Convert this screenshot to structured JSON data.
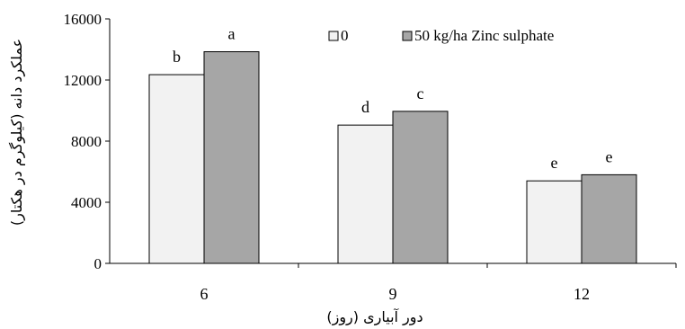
{
  "chart_data": {
    "type": "bar",
    "categories": [
      "6",
      "9",
      "12"
    ],
    "series": [
      {
        "name": "0",
        "values": [
          12350,
          9050,
          5400
        ],
        "color": "#f2f2f2",
        "letters": [
          "b",
          "d",
          "e"
        ]
      },
      {
        "name": "50 kg/ha  Zinc sulphate",
        "values": [
          13850,
          9950,
          5800
        ],
        "color": "#a6a6a6",
        "letters": [
          "a",
          "c",
          "e"
        ]
      }
    ],
    "xlabel": "دور آبیاری (روز)",
    "ylabel": "عملکرد دانه (کیلوگرم در هکتار)",
    "ylim": [
      0,
      16000
    ],
    "yticks": [
      0,
      4000,
      8000,
      12000,
      16000
    ],
    "legend_position": "top-right",
    "grid": false
  }
}
